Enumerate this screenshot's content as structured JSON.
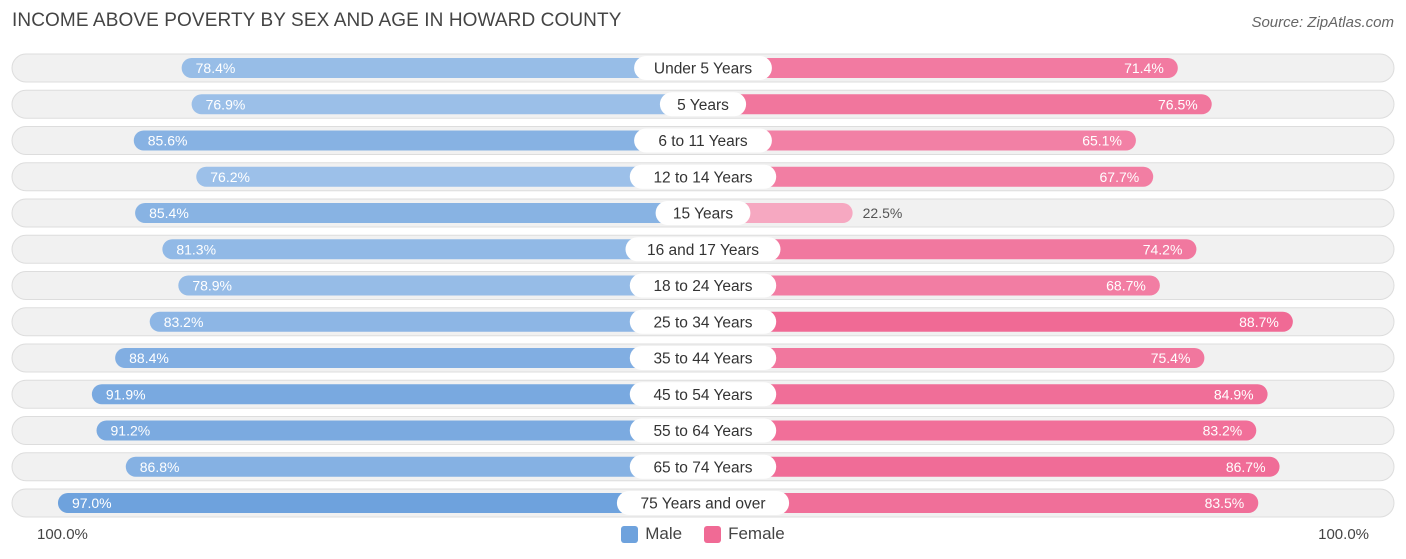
{
  "title": "INCOME ABOVE POVERTY BY SEX AND AGE IN HOWARD COUNTY",
  "source": "Source: ZipAtlas.com",
  "axis": {
    "left_label": "100.0%",
    "right_label": "100.0%"
  },
  "legend": [
    {
      "label": "Male",
      "color": "#6ea2dd"
    },
    {
      "label": "Female",
      "color": "#f06a95"
    }
  ],
  "chart_data": {
    "type": "bar",
    "orientation": "diverging-horizontal",
    "title": "INCOME ABOVE POVERTY BY SEX AND AGE IN HOWARD COUNTY",
    "xlim": [
      0,
      100
    ],
    "categories": [
      "Under 5 Years",
      "5 Years",
      "6 to 11 Years",
      "12 to 14 Years",
      "15 Years",
      "16 and 17 Years",
      "18 to 24 Years",
      "25 to 34 Years",
      "35 to 44 Years",
      "45 to 54 Years",
      "55 to 64 Years",
      "65 to 74 Years",
      "75 Years and over"
    ],
    "series": [
      {
        "name": "Male",
        "values": [
          78.4,
          76.9,
          85.6,
          76.2,
          85.4,
          81.3,
          78.9,
          83.2,
          88.4,
          91.9,
          91.2,
          86.8,
          97.0
        ],
        "labels": [
          "78.4%",
          "76.9%",
          "85.6%",
          "76.2%",
          "85.4%",
          "81.3%",
          "78.9%",
          "83.2%",
          "88.4%",
          "91.9%",
          "91.2%",
          "86.8%",
          "97.0%"
        ]
      },
      {
        "name": "Female",
        "values": [
          71.4,
          76.5,
          65.1,
          67.7,
          22.5,
          74.2,
          68.7,
          88.7,
          75.4,
          84.9,
          83.2,
          86.7,
          83.5
        ],
        "labels": [
          "71.4%",
          "76.5%",
          "65.1%",
          "67.7%",
          "22.5%",
          "74.2%",
          "68.7%",
          "88.7%",
          "75.4%",
          "84.9%",
          "83.2%",
          "86.7%",
          "83.5%"
        ]
      }
    ]
  }
}
